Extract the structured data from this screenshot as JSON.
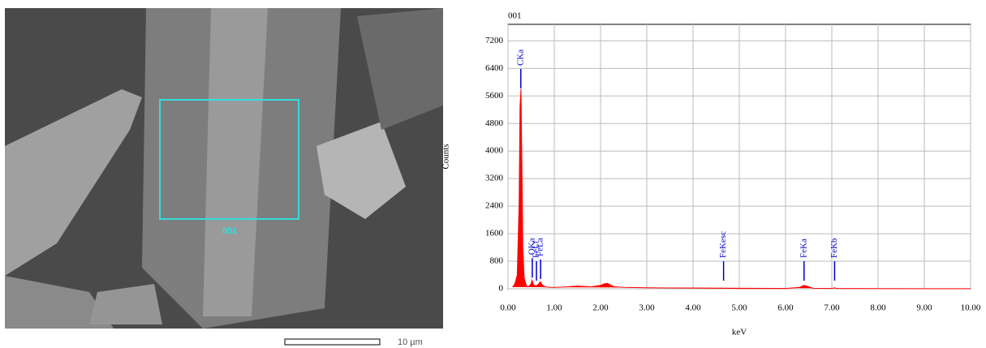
{
  "image": {
    "region_label": "001",
    "scale_bar": "10 µm"
  },
  "chart_data": {
    "type": "area",
    "title": "001",
    "x_label": "keV",
    "y_label": "Counts",
    "color": "#ff0000",
    "x": [
      0.1,
      0.15,
      0.2,
      0.24,
      0.26,
      0.28,
      0.3,
      0.32,
      0.35,
      0.4,
      0.45,
      0.5,
      0.52,
      0.55,
      0.6,
      0.65,
      0.7,
      0.75,
      0.8,
      0.9,
      1.0,
      1.2,
      1.5,
      1.8,
      2.0,
      2.1,
      2.15,
      2.2,
      2.3,
      2.5,
      3.0,
      3.5,
      4.0,
      4.5,
      5.0,
      5.5,
      6.0,
      6.3,
      6.4,
      6.5,
      6.6,
      7.0,
      7.06,
      7.1,
      7.5,
      8.0,
      9.0,
      10.0
    ],
    "values": [
      50,
      150,
      400,
      2500,
      5300,
      5800,
      3600,
      1200,
      300,
      80,
      60,
      150,
      250,
      120,
      80,
      120,
      200,
      100,
      60,
      40,
      40,
      50,
      80,
      60,
      100,
      150,
      160,
      120,
      60,
      40,
      30,
      25,
      20,
      15,
      10,
      10,
      10,
      40,
      100,
      60,
      15,
      10,
      30,
      10,
      5,
      5,
      3,
      2
    ],
    "xlim": [
      0,
      10
    ],
    "ylim": [
      0,
      7680
    ],
    "xticks": [
      {
        "value": 0,
        "label": "0.00"
      },
      {
        "value": 1,
        "label": "1.00"
      },
      {
        "value": 2,
        "label": "2.00"
      },
      {
        "value": 3,
        "label": "3.00"
      },
      {
        "value": 4,
        "label": "4.00"
      },
      {
        "value": 5,
        "label": "5.00"
      },
      {
        "value": 6,
        "label": "6.00"
      },
      {
        "value": 7,
        "label": "7.00"
      },
      {
        "value": 8,
        "label": "8.00"
      },
      {
        "value": 9,
        "label": "9.00"
      },
      {
        "value": 10,
        "label": "10.00"
      }
    ],
    "yticks": [
      0,
      800,
      1600,
      2400,
      3200,
      4000,
      4800,
      5600,
      6400,
      7200
    ],
    "grid": true,
    "annotation_color": "#0000cc",
    "annotations": [
      {
        "label": "CKa",
        "x": 0.277
      },
      {
        "label": "OKa",
        "x": 0.525
      },
      {
        "label": "FeLl",
        "x": 0.615
      },
      {
        "label": "FeLa",
        "x": 0.705
      },
      {
        "label": "FeKesc",
        "x": 4.66
      },
      {
        "label": "FeKa",
        "x": 6.4
      },
      {
        "label": "FeKb",
        "x": 7.06
      }
    ]
  }
}
